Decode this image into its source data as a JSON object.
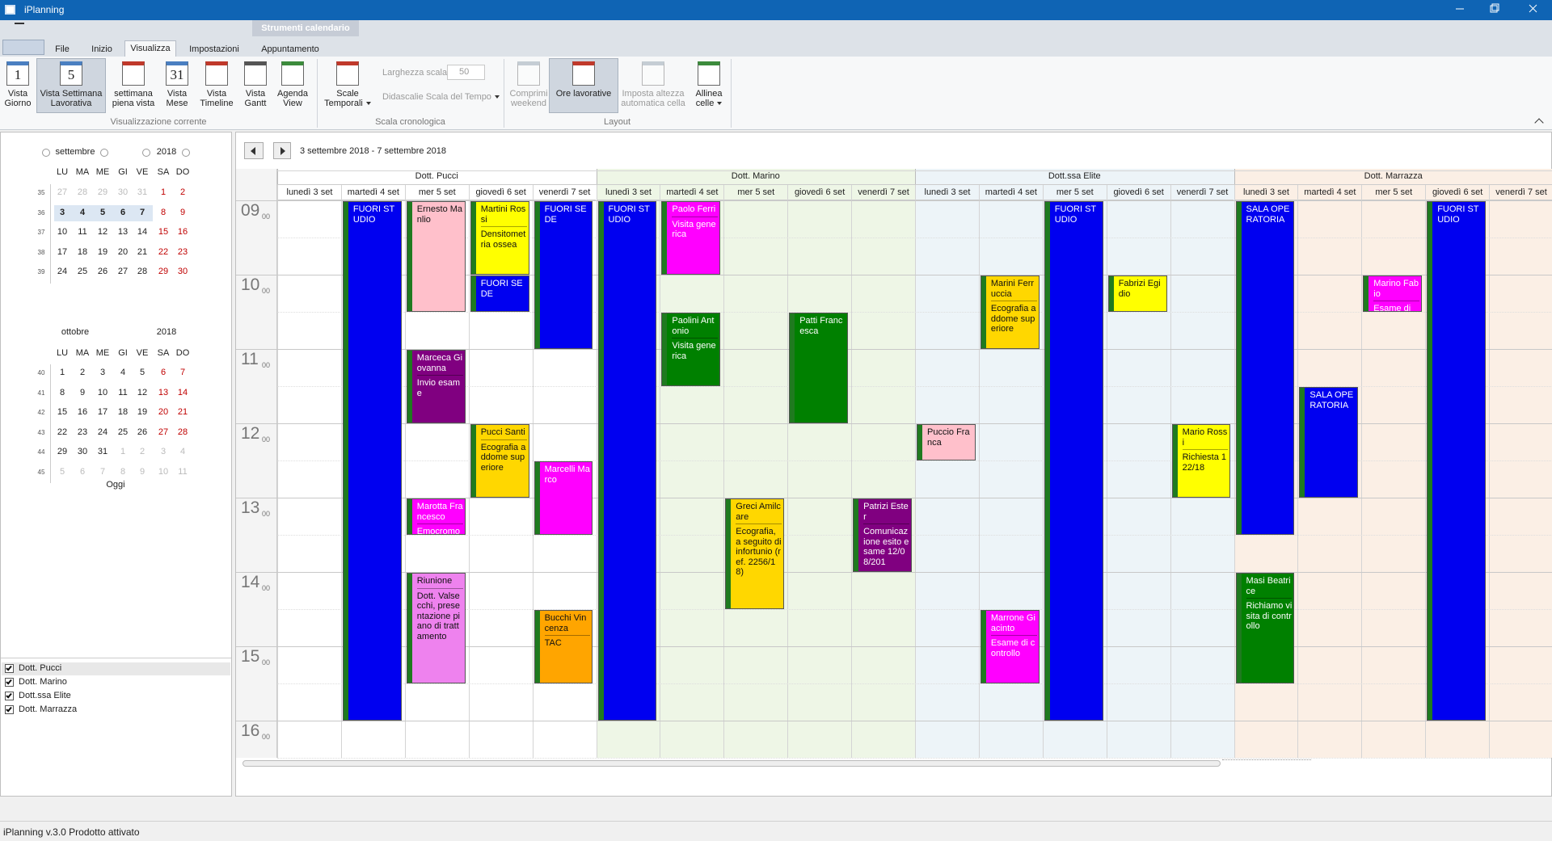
{
  "window": {
    "title": "iPlanning",
    "context_tab": "Strumenti calendario"
  },
  "tabs": [
    "File",
    "Inizio",
    "Visualizza",
    "Impostazioni",
    "Appuntamento"
  ],
  "ribbon": {
    "groups": [
      {
        "label": "Visualizzazione corrente",
        "buttons": [
          {
            "label": "Vista Giorno",
            "icon": "1"
          },
          {
            "label": "Vista Settimana Lavorativa",
            "icon": "5"
          },
          {
            "label": "settimana piena vista"
          },
          {
            "label": "Vista Mese",
            "icon": "31"
          },
          {
            "label": "Vista Timeline"
          },
          {
            "label": "Vista Gantt"
          },
          {
            "label": "Agenda View"
          }
        ]
      },
      {
        "label": "Scala cronologica",
        "buttons": [
          {
            "label": "Scale Temporali"
          }
        ],
        "scale_width_label": "Larghezza scala",
        "scale_width": "50",
        "captions": "Didascalie Scala del Tempo"
      },
      {
        "label": "Layout",
        "buttons": [
          {
            "label": "Comprimi weekend"
          },
          {
            "label": "Ore lavorative"
          },
          {
            "label": "Imposta altezza automatica cella"
          },
          {
            "label": "Allinea celle"
          }
        ]
      }
    ]
  },
  "calendars": [
    {
      "month": "settembre",
      "year": "2018",
      "weekdays": [
        "LU",
        "MA",
        "ME",
        "GI",
        "VE",
        "SA",
        "DO"
      ],
      "weeks": [
        {
          "number": "35",
          "days": [
            "27",
            "28",
            "29",
            "30",
            "31",
            "1",
            "2"
          ]
        },
        {
          "number": "36",
          "days": [
            "3",
            "4",
            "5",
            "6",
            "7",
            "8",
            "9"
          ]
        },
        {
          "number": "37",
          "days": [
            "10",
            "11",
            "12",
            "13",
            "14",
            "15",
            "16"
          ]
        },
        {
          "number": "38",
          "days": [
            "17",
            "18",
            "19",
            "20",
            "21",
            "22",
            "23"
          ]
        },
        {
          "number": "39",
          "days": [
            "24",
            "25",
            "26",
            "27",
            "28",
            "29",
            "30"
          ]
        }
      ]
    },
    {
      "month": "ottobre",
      "year": "2018",
      "weekdays": [
        "LU",
        "MA",
        "ME",
        "GI",
        "VE",
        "SA",
        "DO"
      ],
      "weeks": [
        {
          "number": "40",
          "days": [
            "1",
            "2",
            "3",
            "4",
            "5",
            "6",
            "7"
          ]
        },
        {
          "number": "41",
          "days": [
            "8",
            "9",
            "10",
            "11",
            "12",
            "13",
            "14"
          ]
        },
        {
          "number": "42",
          "days": [
            "15",
            "16",
            "17",
            "18",
            "19",
            "20",
            "21"
          ]
        },
        {
          "number": "43",
          "days": [
            "22",
            "23",
            "24",
            "25",
            "26",
            "27",
            "28"
          ]
        },
        {
          "number": "44",
          "days": [
            "29",
            "30",
            "31",
            "1",
            "2",
            "3",
            "4"
          ]
        },
        {
          "number": "45",
          "days": [
            "5",
            "6",
            "7",
            "8",
            "9",
            "10",
            "11"
          ]
        }
      ]
    }
  ],
  "today": "Oggi",
  "scheduler": {
    "range": "3 settembre 2018 - 7 settembre 2018",
    "resources": [
      {
        "name": "Dott. Pucci",
        "color": "#ffffff",
        "days": [
          "lunedì 3 set",
          "martedì 4 set",
          "mer 5 set",
          "giovedì 6 set",
          "venerdì 7 set"
        ]
      },
      {
        "name": "Dott. Marino",
        "color": "#eef6e6",
        "days": [
          "lunedì 3 set",
          "martedì 4 set",
          "mer 5 set",
          "giovedì 6 set",
          "venerdì 7 set"
        ]
      },
      {
        "name": "Dott.ssa Elite",
        "color": "#edf4f8",
        "days": [
          "lunedì 3 set",
          "martedì 4 set",
          "mer 5 set",
          "giovedì 6 set",
          "venerdì 7 set"
        ]
      },
      {
        "name": "Dott. Marrazza",
        "color": "#fbefe5",
        "days": [
          "lunedì 3 set",
          "martedì 4 set",
          "mer 5 set",
          "giovedì 6 set",
          "venerdì 7 set"
        ]
      }
    ],
    "hours": [
      {
        "hour": "09",
        "minutes": "00"
      },
      {
        "hour": "10",
        "minutes": "00"
      },
      {
        "hour": "11",
        "minutes": "00"
      },
      {
        "hour": "12",
        "minutes": "00"
      },
      {
        "hour": "13",
        "minutes": "00"
      },
      {
        "hour": "14",
        "minutes": "00"
      },
      {
        "hour": "15",
        "minutes": "00"
      },
      {
        "hour": "16",
        "minutes": "00"
      }
    ],
    "appointments": [
      {
        "title": "FUORI STUDIO",
        "color": "#0000f0"
      },
      {
        "title": "Ernesto Manlio",
        "color": "#ffc0cb"
      },
      {
        "title": "Marceca Giovanna",
        "details": "Invio esame",
        "color": "#800080"
      },
      {
        "title": "Marotta Francesco",
        "details": "Emocromo",
        "color": "#ff00ff"
      },
      {
        "title": "Riunione",
        "details": "Dott. Valsecchi, presentazione piano di trattamento",
        "color": "#ee82ee"
      },
      {
        "title": "Martini Rossi",
        "details": "Densitometria ossea",
        "color": "#ffff00"
      },
      {
        "title": "FUORI SEDE",
        "color": "#0000f0"
      },
      {
        "title": "Pucci Santi",
        "details": "Ecografia addome superiore",
        "color": "#ffd700"
      },
      {
        "title": "FUORI SEDE",
        "color": "#0000f0"
      },
      {
        "title": "Marcelli Marco",
        "color": "#ff00ff"
      },
      {
        "title": "Bucchi Vincenza",
        "details": "TAC",
        "color": "#ffa500"
      },
      {
        "title": "FUORI STUDIO",
        "color": "#0000f0"
      },
      {
        "title": "Paolo Ferri",
        "details": "Visita generica",
        "color": "#ff00ff"
      },
      {
        "title": "Paolini Antonio",
        "details": "Visita generica",
        "color": "#008000"
      },
      {
        "title": "Greci Amilcare",
        "details": "Ecografia, a seguito di infortunio (ref. 2256/18)",
        "color": "#ffd700"
      },
      {
        "title": "Patti Francesca",
        "color": "#008000"
      },
      {
        "title": "Patrizi Ester",
        "details": "Comunicazione esito esame 12/08/201",
        "color": "#800080"
      },
      {
        "title": "Puccio Franca",
        "color": "#ffc0cb"
      },
      {
        "title": "Marini Ferruccia",
        "details": "Ecografia addome superiore",
        "color": "#ffd700"
      },
      {
        "title": "Marrone Giacinto",
        "details": "Esame di controllo",
        "color": "#ff00ff"
      },
      {
        "title": "FUORI STUDIO",
        "color": "#0000f0"
      },
      {
        "title": "Fabrizi Egidio",
        "color": "#ffff00"
      },
      {
        "title": "Mario Rossi",
        "details": "Richiesta 122/18",
        "color": "#ffff00"
      },
      {
        "title": "SALA OPERATORIA",
        "color": "#0000f0"
      },
      {
        "title": "Masi Beatrice",
        "details": "Richiamo visita di controllo",
        "color": "#008000"
      },
      {
        "title": "SALA OPERATORIA",
        "color": "#0000f0"
      },
      {
        "title": "Marino Fabio",
        "details": "Esame di",
        "color": "#ff00ff"
      },
      {
        "title": "FUORI STUDIO",
        "color": "#0000f0"
      }
    ]
  },
  "status": "iPlanning v.3.0 Prodotto attivato"
}
